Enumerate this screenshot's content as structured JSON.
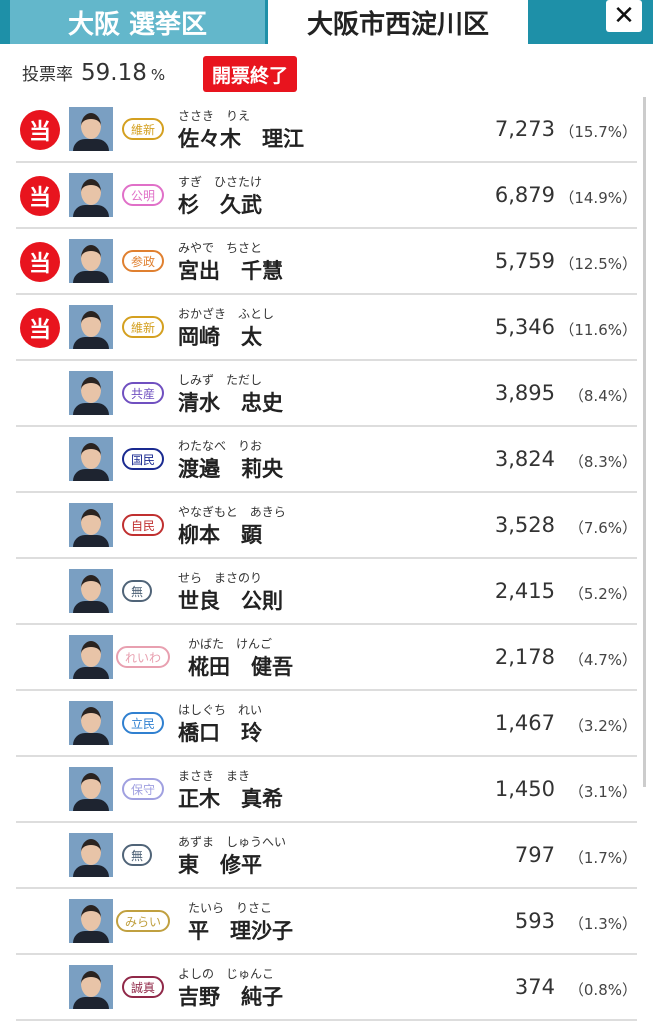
{
  "header": {
    "tab_prefecture": "大阪 選挙区",
    "tab_ward": "大阪市西淀川区",
    "close_label": "✕"
  },
  "turnout": {
    "label": "投票率",
    "value": "59.18",
    "unit": "%"
  },
  "status_badge": "開票終了",
  "elected_mark": "当",
  "candidates": [
    {
      "elected": true,
      "party": "維新",
      "party_color": "#d4a020",
      "kana": "ささき　りえ",
      "name": "佐々木　理江",
      "votes": "7,273",
      "share": "（15.7%）"
    },
    {
      "elected": true,
      "party": "公明",
      "party_color": "#e070c8",
      "kana": "すぎ　ひさたけ",
      "name": "杉　久武",
      "votes": "6,879",
      "share": "（14.9%）"
    },
    {
      "elected": true,
      "party": "参政",
      "party_color": "#e08030",
      "kana": "みやで　ちさと",
      "name": "宮出　千慧",
      "votes": "5,759",
      "share": "（12.5%）"
    },
    {
      "elected": true,
      "party": "維新",
      "party_color": "#d4a020",
      "kana": "おかざき　ふとし",
      "name": "岡崎　太",
      "votes": "5,346",
      "share": "（11.6%）"
    },
    {
      "elected": false,
      "party": "共産",
      "party_color": "#7050c0",
      "kana": "しみず　ただし",
      "name": "清水　忠史",
      "votes": "3,895",
      "share": "（8.4%）"
    },
    {
      "elected": false,
      "party": "国民",
      "party_color": "#1a2a90",
      "kana": "わたなべ　りお",
      "name": "渡邉　莉央",
      "votes": "3,824",
      "share": "（8.3%）"
    },
    {
      "elected": false,
      "party": "自民",
      "party_color": "#c03030",
      "kana": "やなぎもと　あきら",
      "name": "柳本　顕",
      "votes": "3,528",
      "share": "（7.6%）"
    },
    {
      "elected": false,
      "party": "無",
      "party_color": "#506478",
      "kana": "せら　まさのり",
      "name": "世良　公則",
      "votes": "2,415",
      "share": "（5.2%）"
    },
    {
      "elected": false,
      "party": "れいわ",
      "party_color": "#e8a0b0",
      "kana": "かばた　けんご",
      "name": "椛田　健吾",
      "votes": "2,178",
      "share": "（4.7%）"
    },
    {
      "elected": false,
      "party": "立民",
      "party_color": "#3080d0",
      "kana": "はしぐち　れい",
      "name": "橋口　玲",
      "votes": "1,467",
      "share": "（3.2%）"
    },
    {
      "elected": false,
      "party": "保守",
      "party_color": "#a0a0e0",
      "kana": "まさき　まき",
      "name": "正木　真希",
      "votes": "1,450",
      "share": "（3.1%）"
    },
    {
      "elected": false,
      "party": "無",
      "party_color": "#506478",
      "kana": "あずま　しゅうへい",
      "name": "東　修平",
      "votes": "797",
      "share": "（1.7%）"
    },
    {
      "elected": false,
      "party": "みらい",
      "party_color": "#c0a040",
      "kana": "たいら　りさこ",
      "name": "平　理沙子",
      "votes": "593",
      "share": "（1.3%）"
    },
    {
      "elected": false,
      "party": "誠真",
      "party_color": "#902848",
      "kana": "よしの　じゅんこ",
      "name": "吉野　純子",
      "votes": "374",
      "share": "（0.8%）"
    }
  ]
}
